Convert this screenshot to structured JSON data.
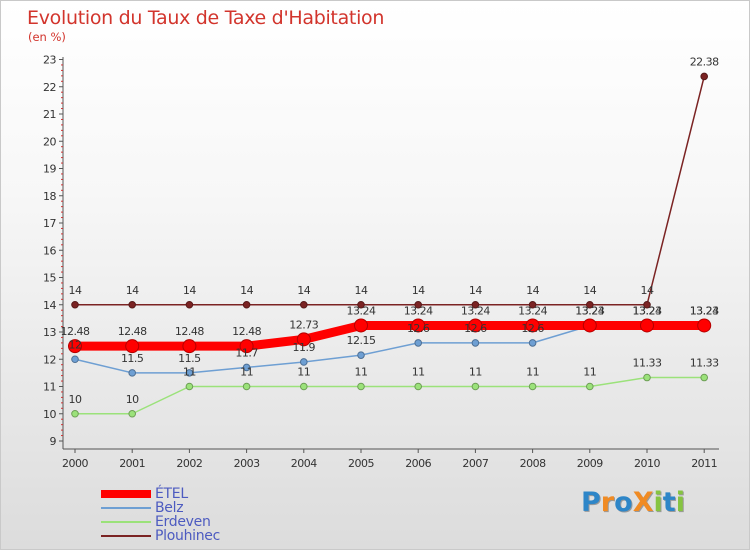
{
  "header": {
    "title": "Evolution du Taux de Taxe d'Habitation",
    "unit": "(en %)"
  },
  "logo": {
    "text": "ProXiti",
    "letters": [
      {
        "ch": "P",
        "color": "#2e86c8"
      },
      {
        "ch": "r",
        "color": "#f08b24"
      },
      {
        "ch": "o",
        "color": "#2e86c8"
      },
      {
        "ch": "X",
        "color": "#f08b24"
      },
      {
        "ch": "i",
        "color": "#86c441"
      },
      {
        "ch": "t",
        "color": "#2e86c8"
      },
      {
        "ch": "i",
        "color": "#86c441"
      }
    ]
  },
  "chart_data": {
    "type": "line",
    "title": "Evolution du Taux de Taxe d'Habitation",
    "ylabel": "(en %)",
    "xlabel": "",
    "categories": [
      "2000",
      "2001",
      "2002",
      "2003",
      "2004",
      "2005",
      "2006",
      "2007",
      "2008",
      "2009",
      "2010",
      "2011"
    ],
    "ylim": [
      9,
      23
    ],
    "yticks": [
      "9",
      "10",
      "11",
      "12",
      "13",
      "14",
      "15",
      "16",
      "17",
      "18",
      "19",
      "20",
      "21",
      "22",
      "23"
    ],
    "grid": false,
    "legend_position": "bottom-left",
    "series": [
      {
        "name": "Plouhinec",
        "color": "#7b2323",
        "values": [
          14,
          14,
          14,
          14,
          14,
          14,
          14,
          14,
          14,
          14,
          14,
          22.38
        ],
        "labels": [
          "14",
          "14",
          "14",
          "14",
          "14",
          "14",
          "14",
          "14",
          "14",
          "14",
          "14",
          "22.38"
        ]
      },
      {
        "name": "Erdeven",
        "color": "#9be27a",
        "values": [
          10,
          10,
          11,
          11,
          11,
          11,
          11,
          11,
          11,
          11,
          11.33,
          11.33
        ],
        "labels": [
          "10",
          "10",
          "11",
          "11",
          "11",
          "11",
          "11",
          "11",
          "11",
          "11",
          "11.33",
          "11.33"
        ]
      },
      {
        "name": "Belz",
        "color": "#6e9fd3",
        "values": [
          12,
          11.5,
          11.5,
          11.7,
          11.9,
          12.15,
          12.6,
          12.6,
          12.6,
          13.23,
          13.23,
          13.23
        ],
        "labels": [
          "12",
          "11.5",
          "11.5",
          "11.7",
          "11.9",
          "12.15",
          "12.6",
          "12.6",
          "12.6",
          "13.23",
          "13.23",
          "13.23"
        ]
      },
      {
        "name": "ÉTEL",
        "color": "#ff0000",
        "values": [
          12.48,
          12.48,
          12.48,
          12.48,
          12.73,
          13.24,
          13.24,
          13.24,
          13.24,
          13.24,
          13.24,
          13.24
        ],
        "labels": [
          "12.48",
          "12.48",
          "12.48",
          "12.48",
          "12.73",
          "13.24",
          "13.24",
          "13.24",
          "13.24",
          "13.24",
          "13.24",
          "13.24"
        ]
      }
    ],
    "legend": [
      "ÉTEL",
      "Belz",
      "Erdeven",
      "Plouhinec"
    ]
  }
}
